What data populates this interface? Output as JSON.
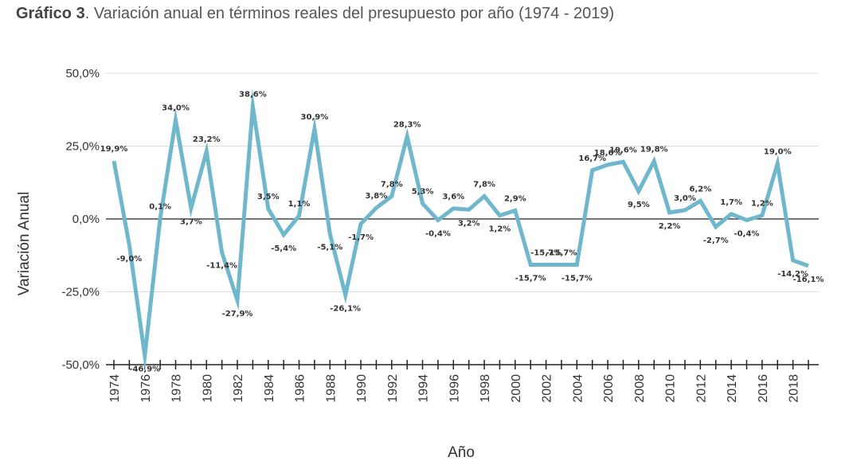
{
  "caption": {
    "prefix": "Gráfico 3",
    "text": ". Variación anual en términos reales del presupuesto por año (1974 - 2019)"
  },
  "colors": {
    "line": "#6fb7cc",
    "grid": "#dddddd",
    "zero_line": "#222222"
  },
  "chart_data": {
    "type": "line",
    "title": "",
    "xlabel": "Año",
    "ylabel": "Variación Anual",
    "ylim": [
      -50,
      50
    ],
    "y_ticks": [
      "-50,0%",
      "-25,0%",
      "0,0%",
      "25,0%",
      "50,0%"
    ],
    "x_tick_labels": [
      "1974",
      "1976",
      "1978",
      "1980",
      "1982",
      "1984",
      "1986",
      "1988",
      "1990",
      "1992",
      "1994",
      "1996",
      "1998",
      "2000",
      "2002",
      "2004",
      "2006",
      "2008",
      "2010",
      "2012",
      "2014",
      "2016",
      "2018"
    ],
    "grid": true,
    "series": [
      {
        "x": [
          1974,
          1975,
          1976,
          1977,
          1978,
          1979,
          1980,
          1981,
          1982,
          1983,
          1984,
          1985,
          1986,
          1987,
          1988,
          1989,
          1990,
          1991,
          1992,
          1993,
          1994,
          1995,
          1996,
          1997,
          1998,
          1999,
          2000,
          2001,
          2002,
          2003,
          2004,
          2005,
          2006,
          2007,
          2008,
          2009,
          2010,
          2011,
          2012,
          2013,
          2014,
          2015,
          2016,
          2017,
          2018,
          2019
        ],
        "values": [
          19.9,
          -9.0,
          -46.9,
          0.1,
          34.0,
          3.7,
          23.2,
          -11.4,
          -27.9,
          38.6,
          3.5,
          -5.4,
          1.1,
          30.9,
          -5.1,
          -26.1,
          -1.7,
          3.8,
          7.8,
          28.3,
          5.3,
          -0.4,
          3.6,
          3.2,
          7.8,
          1.2,
          2.9,
          -15.7,
          -15.7,
          -15.7,
          -15.7,
          16.7,
          18.6,
          19.6,
          9.5,
          19.8,
          2.2,
          3.0,
          6.2,
          -2.7,
          1.7,
          -0.4,
          1.2,
          19.0,
          -14.2,
          -16.1
        ],
        "labels": [
          "19,9%",
          "-9,0%",
          "-46,9%",
          "0,1%",
          "34,0%",
          "3,7%",
          "23,2%",
          "-11,4%",
          "-27,9%",
          "38,6%",
          "3,5%",
          "-5,4%",
          "1,1%",
          "30,9%",
          "-5,1%",
          "-26,1%",
          "-1,7%",
          "3,8%",
          "7,8%",
          "28,3%",
          "5,3%",
          "-0,4%",
          "3,6%",
          "3,2%",
          "7,8%",
          "1,2%",
          "2,9%",
          "-15,7%",
          "-15,7%",
          "-15,7%",
          "-15,7%",
          "16,7%",
          "18,6%",
          "19,6%",
          "9,5%",
          "19,8%",
          "2,2%",
          "3,0%",
          "6,2%",
          "-2,7%",
          "1,7%",
          "-0,4%",
          "1,2%",
          "19,0%",
          "-14,2%",
          "-16,1%"
        ]
      }
    ]
  }
}
